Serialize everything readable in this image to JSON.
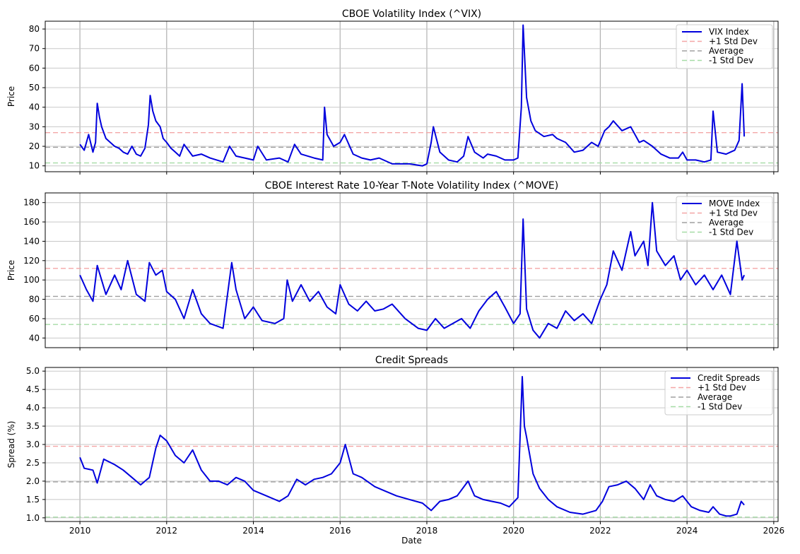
{
  "chart_data": [
    {
      "type": "line",
      "title": "CBOE Volatility Index (^VIX)",
      "ylabel": "Price",
      "xlabel": "",
      "xlim": [
        2009.2,
        2026.1
      ],
      "ylim": [
        7,
        84
      ],
      "yticks": [
        10,
        20,
        30,
        40,
        50,
        60,
        70,
        80
      ],
      "grid": true,
      "legend_position": "top-right",
      "series": [
        {
          "name": "VIX Index",
          "color": "#0000dd",
          "x": [
            2010.0,
            2010.1,
            2010.2,
            2010.3,
            2010.36,
            2010.4,
            2010.45,
            2010.5,
            2010.6,
            2010.7,
            2010.8,
            2010.9,
            2011.0,
            2011.1,
            2011.2,
            2011.3,
            2011.4,
            2011.5,
            2011.58,
            2011.62,
            2011.68,
            2011.75,
            2011.85,
            2011.92,
            2012.0,
            2012.1,
            2012.2,
            2012.3,
            2012.4,
            2012.5,
            2012.6,
            2012.8,
            2013.0,
            2013.3,
            2013.45,
            2013.6,
            2013.8,
            2014.0,
            2014.1,
            2014.3,
            2014.6,
            2014.8,
            2014.95,
            2015.1,
            2015.4,
            2015.6,
            2015.64,
            2015.7,
            2015.85,
            2016.0,
            2016.1,
            2016.3,
            2016.5,
            2016.7,
            2016.9,
            2017.2,
            2017.6,
            2017.9,
            2018.0,
            2018.1,
            2018.15,
            2018.3,
            2018.5,
            2018.7,
            2018.85,
            2018.95,
            2019.1,
            2019.3,
            2019.4,
            2019.6,
            2019.8,
            2020.0,
            2020.1,
            2020.18,
            2020.22,
            2020.3,
            2020.4,
            2020.5,
            2020.7,
            2020.9,
            2021.0,
            2021.2,
            2021.4,
            2021.6,
            2021.8,
            2021.95,
            2022.1,
            2022.2,
            2022.3,
            2022.5,
            2022.7,
            2022.8,
            2022.9,
            2023.0,
            2023.2,
            2023.4,
            2023.6,
            2023.8,
            2023.9,
            2024.0,
            2024.2,
            2024.4,
            2024.55,
            2024.6,
            2024.7,
            2024.9,
            2025.0,
            2025.1,
            2025.2,
            2025.27,
            2025.32
          ],
          "y": [
            21,
            18,
            26,
            17,
            22,
            42,
            35,
            30,
            24,
            22,
            20,
            19,
            17,
            16,
            20,
            16,
            15,
            19,
            31,
            46,
            38,
            33,
            30,
            24,
            22,
            19,
            17,
            15,
            21,
            18,
            15,
            16,
            14,
            12,
            20,
            15,
            14,
            13,
            20,
            13,
            14,
            12,
            21,
            16,
            14,
            13,
            40,
            26,
            20,
            22,
            26,
            16,
            14,
            13,
            14,
            11,
            11,
            10,
            11,
            22,
            30,
            17,
            13,
            12,
            15,
            25,
            17,
            14,
            16,
            15,
            13,
            13,
            14,
            40,
            82,
            45,
            33,
            28,
            25,
            26,
            24,
            22,
            17,
            18,
            22,
            20,
            28,
            30,
            33,
            28,
            30,
            26,
            22,
            23,
            20,
            16,
            14,
            14,
            17,
            13,
            13,
            12,
            13,
            38,
            17,
            16,
            17,
            18,
            23,
            52,
            25
          ]
        },
        {
          "name": "+1 Std Dev",
          "color": "#f4a6a6",
          "value": 27
        },
        {
          "name": "Average",
          "color": "#a0a0a0",
          "value": 19.5
        },
        {
          "name": "-1 Std Dev",
          "color": "#a6dca6",
          "value": 11.5
        }
      ]
    },
    {
      "type": "line",
      "title": "CBOE Interest Rate 10-Year T-Note Volatility Index (^MOVE)",
      "ylabel": "Price",
      "xlabel": "",
      "xlim": [
        2009.2,
        2026.1
      ],
      "ylim": [
        30,
        190
      ],
      "yticks": [
        40,
        60,
        80,
        100,
        120,
        140,
        160,
        180
      ],
      "grid": true,
      "legend_position": "top-right",
      "series": [
        {
          "name": "MOVE Index",
          "color": "#0000dd",
          "x": [
            2010.0,
            2010.15,
            2010.3,
            2010.4,
            2010.6,
            2010.8,
            2010.95,
            2011.1,
            2011.3,
            2011.5,
            2011.6,
            2011.75,
            2011.9,
            2012.0,
            2012.2,
            2012.4,
            2012.6,
            2012.8,
            2013.0,
            2013.3,
            2013.5,
            2013.6,
            2013.8,
            2014.0,
            2014.2,
            2014.5,
            2014.7,
            2014.78,
            2014.9,
            2015.1,
            2015.3,
            2015.5,
            2015.7,
            2015.9,
            2016.0,
            2016.2,
            2016.4,
            2016.6,
            2016.8,
            2017.0,
            2017.2,
            2017.5,
            2017.8,
            2018.0,
            2018.2,
            2018.4,
            2018.6,
            2018.8,
            2019.0,
            2019.2,
            2019.4,
            2019.6,
            2019.8,
            2020.0,
            2020.15,
            2020.22,
            2020.3,
            2020.45,
            2020.6,
            2020.8,
            2021.0,
            2021.2,
            2021.4,
            2021.6,
            2021.8,
            2022.0,
            2022.15,
            2022.3,
            2022.5,
            2022.7,
            2022.8,
            2023.0,
            2023.1,
            2023.2,
            2023.3,
            2023.5,
            2023.7,
            2023.85,
            2024.0,
            2024.2,
            2024.4,
            2024.6,
            2024.8,
            2025.0,
            2025.15,
            2025.27,
            2025.32
          ],
          "y": [
            105,
            90,
            78,
            115,
            85,
            105,
            90,
            120,
            85,
            78,
            118,
            105,
            110,
            88,
            80,
            60,
            90,
            65,
            55,
            50,
            118,
            90,
            60,
            72,
            58,
            55,
            60,
            100,
            78,
            95,
            78,
            88,
            72,
            65,
            95,
            75,
            68,
            78,
            68,
            70,
            75,
            60,
            50,
            48,
            60,
            50,
            55,
            60,
            50,
            68,
            80,
            88,
            72,
            55,
            65,
            163,
            70,
            48,
            40,
            55,
            50,
            68,
            58,
            65,
            55,
            80,
            95,
            130,
            110,
            150,
            125,
            140,
            115,
            180,
            130,
            115,
            125,
            100,
            110,
            95,
            105,
            90,
            105,
            85,
            140,
            100,
            105
          ]
        },
        {
          "name": "+1 Std Dev",
          "color": "#f4a6a6",
          "value": 112
        },
        {
          "name": "Average",
          "color": "#a0a0a0",
          "value": 83
        },
        {
          "name": "-1 Std Dev",
          "color": "#a6dca6",
          "value": 54
        }
      ]
    },
    {
      "type": "line",
      "title": "Credit Spreads",
      "ylabel": "Spread (%)",
      "xlabel": "Date",
      "xlim": [
        2009.2,
        2026.1
      ],
      "ylim": [
        0.9,
        5.1
      ],
      "yticks": [
        1.0,
        1.5,
        2.0,
        2.5,
        3.0,
        3.5,
        4.0,
        4.5,
        5.0
      ],
      "grid": true,
      "legend_position": "top-right",
      "xticks": [
        2010,
        2012,
        2014,
        2016,
        2018,
        2020,
        2022,
        2024,
        2026
      ],
      "series": [
        {
          "name": "Credit Spreads",
          "color": "#0000dd",
          "x": [
            2010.0,
            2010.1,
            2010.3,
            2010.4,
            2010.55,
            2010.8,
            2011.0,
            2011.2,
            2011.4,
            2011.6,
            2011.75,
            2011.85,
            2012.0,
            2012.2,
            2012.4,
            2012.6,
            2012.8,
            2013.0,
            2013.2,
            2013.4,
            2013.6,
            2013.8,
            2014.0,
            2014.3,
            2014.6,
            2014.8,
            2015.0,
            2015.2,
            2015.4,
            2015.6,
            2015.8,
            2016.0,
            2016.12,
            2016.3,
            2016.5,
            2016.8,
            2017.0,
            2017.3,
            2017.6,
            2017.9,
            2018.1,
            2018.3,
            2018.5,
            2018.7,
            2018.95,
            2019.1,
            2019.3,
            2019.5,
            2019.7,
            2019.9,
            2020.1,
            2020.2,
            2020.25,
            2020.3,
            2020.45,
            2020.6,
            2020.8,
            2021.0,
            2021.3,
            2021.6,
            2021.9,
            2022.05,
            2022.2,
            2022.4,
            2022.6,
            2022.8,
            2023.0,
            2023.15,
            2023.3,
            2023.5,
            2023.7,
            2023.9,
            2024.1,
            2024.3,
            2024.5,
            2024.6,
            2024.75,
            2024.9,
            2025.0,
            2025.15,
            2025.25,
            2025.32
          ],
          "y": [
            2.65,
            2.35,
            2.3,
            1.95,
            2.6,
            2.45,
            2.3,
            2.1,
            1.9,
            2.1,
            2.9,
            3.25,
            3.1,
            2.7,
            2.5,
            2.85,
            2.3,
            2.0,
            2.0,
            1.9,
            2.1,
            2.0,
            1.75,
            1.6,
            1.45,
            1.6,
            2.05,
            1.9,
            2.05,
            2.1,
            2.2,
            2.5,
            3.0,
            2.2,
            2.1,
            1.85,
            1.75,
            1.6,
            1.5,
            1.4,
            1.2,
            1.45,
            1.5,
            1.6,
            2.0,
            1.6,
            1.5,
            1.45,
            1.4,
            1.3,
            1.55,
            4.85,
            3.5,
            3.2,
            2.2,
            1.8,
            1.5,
            1.3,
            1.15,
            1.1,
            1.2,
            1.45,
            1.85,
            1.9,
            2.0,
            1.8,
            1.5,
            1.9,
            1.6,
            1.5,
            1.45,
            1.6,
            1.3,
            1.2,
            1.15,
            1.3,
            1.1,
            1.05,
            1.05,
            1.1,
            1.45,
            1.35
          ]
        },
        {
          "name": "+1 Std Dev",
          "color": "#f4a6a6",
          "value": 2.95
        },
        {
          "name": "Average",
          "color": "#a0a0a0",
          "value": 1.98
        },
        {
          "name": "-1 Std Dev",
          "color": "#a6dca6",
          "value": 1.02
        }
      ]
    }
  ]
}
